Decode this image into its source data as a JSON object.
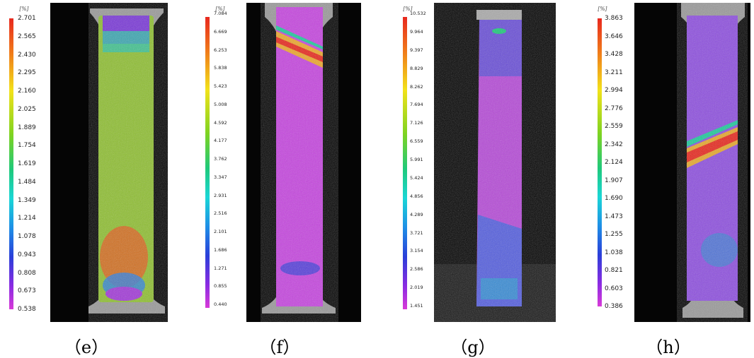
{
  "panels": [
    {
      "caption": "（e）",
      "unit": "[%]",
      "ticks": [
        "2.701",
        "2.565",
        "2.430",
        "2.295",
        "2.160",
        "2.025",
        "1.889",
        "1.754",
        "1.619",
        "1.484",
        "1.349",
        "1.214",
        "1.078",
        "0.943",
        "0.808",
        "0.673",
        "0.538"
      ]
    },
    {
      "caption": "（f）",
      "unit": "[%]",
      "ticks": [
        "7.084",
        "6.669",
        "6.253",
        "5.838",
        "5.423",
        "5.008",
        "4.592",
        "4.177",
        "3.762",
        "3.347",
        "2.931",
        "2.516",
        "2.101",
        "1.686",
        "1.271",
        "0.855",
        "0.440"
      ]
    },
    {
      "caption": "（g）",
      "unit": "[%]",
      "ticks": [
        "10.532",
        "9.964",
        "9.397",
        "8.829",
        "8.262",
        "7.694",
        "7.126",
        "6.559",
        "5.991",
        "5.424",
        "4.856",
        "4.289",
        "3.721",
        "3.154",
        "2.586",
        "2.019",
        "1.451"
      ]
    },
    {
      "caption": "（h）",
      "unit": "[%]",
      "ticks": [
        "3.863",
        "3.646",
        "3.428",
        "3.211",
        "2.994",
        "2.776",
        "2.559",
        "2.342",
        "2.124",
        "1.907",
        "1.690",
        "1.473",
        "1.255",
        "1.038",
        "0.821",
        "0.603",
        "0.386"
      ]
    }
  ]
}
